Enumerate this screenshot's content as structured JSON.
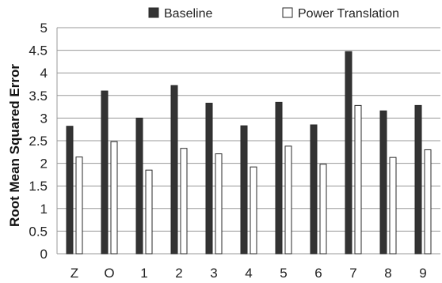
{
  "chart_data": {
    "type": "bar",
    "title": "",
    "xlabel": "",
    "ylabel": "Root Mean Squared Error",
    "ylim": [
      0,
      5
    ],
    "yticks": [
      "0",
      "0.5",
      "1",
      "1.5",
      "2",
      "2.5",
      "3",
      "3.5",
      "4",
      "4.5",
      "5"
    ],
    "grid": true,
    "legend_position": "top",
    "categories": [
      "Z",
      "O",
      "1",
      "2",
      "3",
      "4",
      "5",
      "6",
      "7",
      "8",
      "9"
    ],
    "series": [
      {
        "name": "Baseline",
        "color": "#333333",
        "values": [
          2.82,
          3.6,
          3.0,
          3.72,
          3.33,
          2.83,
          3.35,
          2.85,
          4.47,
          3.16,
          3.28
        ]
      },
      {
        "name": "Power Translation",
        "color": "#ffffff",
        "values": [
          2.14,
          2.48,
          1.85,
          2.33,
          2.21,
          1.92,
          2.38,
          1.98,
          3.28,
          2.13,
          2.3
        ]
      }
    ]
  }
}
